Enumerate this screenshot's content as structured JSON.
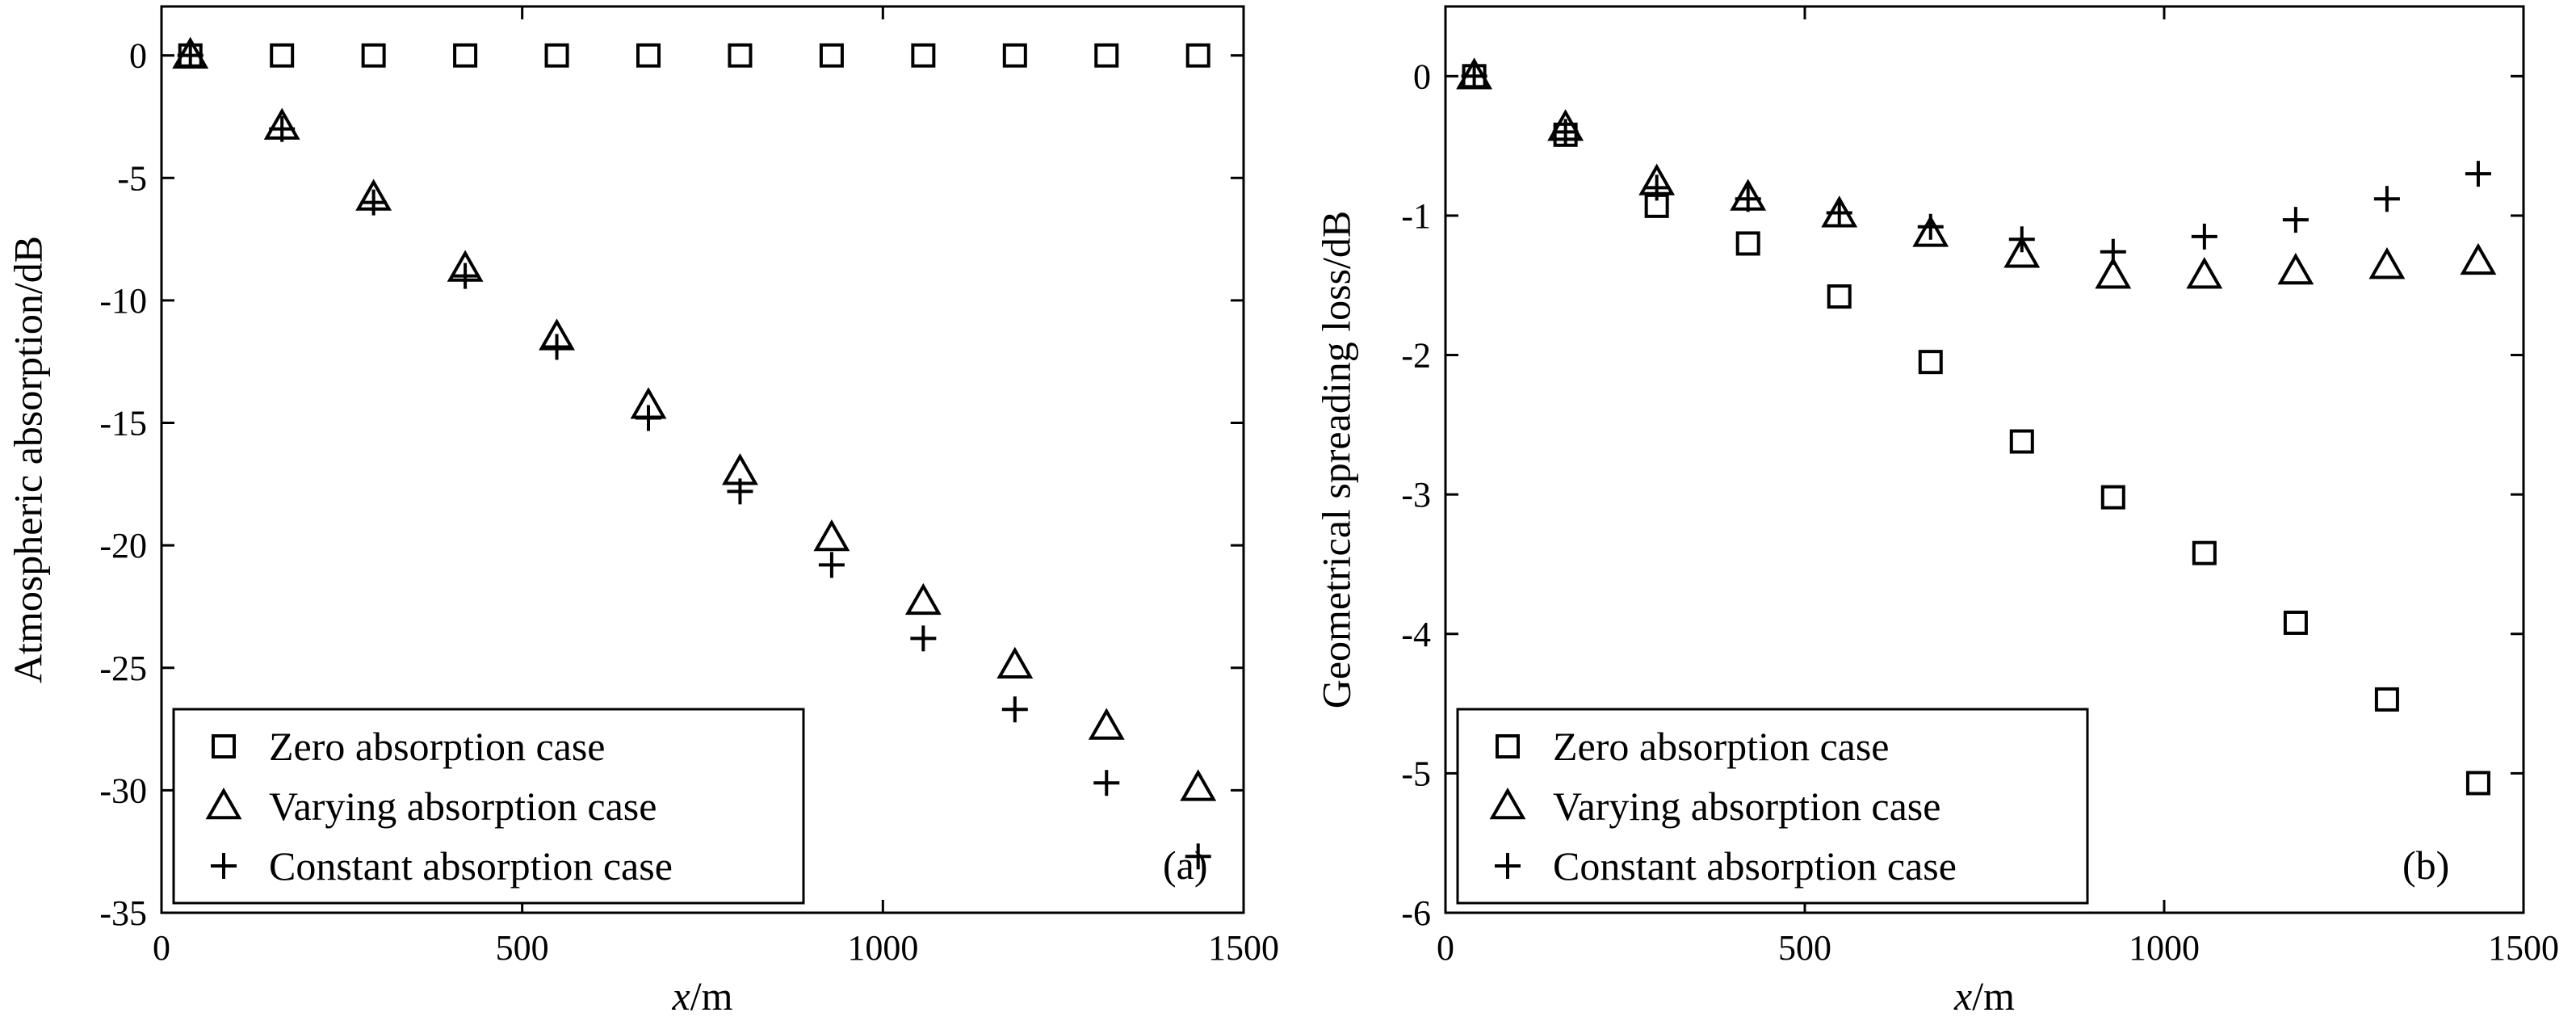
{
  "chart_data": [
    {
      "type": "scatter",
      "panel_label": "(a)",
      "xlabel_italic": "x",
      "xlabel_rest": "/m",
      "ylabel": "Atmospheric absorption/dB",
      "xlim": [
        0,
        1500
      ],
      "ylim": [
        -35,
        2
      ],
      "xticks": [
        0,
        500,
        1000,
        1500
      ],
      "yticks": [
        0,
        -5,
        -10,
        -15,
        -20,
        -25,
        -30,
        -35
      ],
      "grid": false,
      "legend_position": "bottom-left",
      "x": [
        40,
        167,
        294,
        421,
        548,
        675,
        802,
        929,
        1056,
        1183,
        1310,
        1437
      ],
      "series": [
        {
          "name": "Zero absorption case",
          "marker": "square",
          "values": [
            0,
            0,
            0,
            0,
            0,
            0,
            0,
            0,
            0,
            0,
            0,
            0
          ]
        },
        {
          "name": "Varying absorption case",
          "marker": "triangle",
          "values": [
            0,
            -2.9,
            -5.8,
            -8.7,
            -11.5,
            -14.3,
            -17.0,
            -19.7,
            -22.3,
            -24.9,
            -27.4,
            -29.9
          ]
        },
        {
          "name": "Constant absorption case",
          "marker": "plus",
          "values": [
            0,
            -3.0,
            -6.0,
            -9.0,
            -11.9,
            -14.8,
            -17.8,
            -20.8,
            -23.8,
            -26.7,
            -29.7,
            -32.7
          ]
        }
      ]
    },
    {
      "type": "scatter",
      "panel_label": "(b)",
      "xlabel_italic": "x",
      "xlabel_rest": "/m",
      "ylabel": "Geometrical spreading loss/dB",
      "xlim": [
        0,
        1500
      ],
      "ylim": [
        -6,
        0.5
      ],
      "xticks": [
        0,
        500,
        1000,
        1500
      ],
      "yticks": [
        0,
        -1,
        -2,
        -3,
        -4,
        -5,
        -6
      ],
      "grid": false,
      "legend_position": "bottom-left",
      "x": [
        40,
        167,
        294,
        421,
        548,
        675,
        802,
        929,
        1056,
        1183,
        1310,
        1437
      ],
      "series": [
        {
          "name": "Zero absorption case",
          "marker": "square",
          "values": [
            0,
            -0.42,
            -0.93,
            -1.2,
            -1.58,
            -2.05,
            -2.62,
            -3.02,
            -3.42,
            -3.92,
            -4.47,
            -5.07
          ]
        },
        {
          "name": "Varying absorption case",
          "marker": "triangle",
          "values": [
            0,
            -0.37,
            -0.76,
            -0.87,
            -0.99,
            -1.13,
            -1.28,
            -1.43,
            -1.43,
            -1.4,
            -1.36,
            -1.33
          ]
        },
        {
          "name": "Constant absorption case",
          "marker": "plus",
          "values": [
            0,
            -0.4,
            -0.8,
            -0.88,
            -0.98,
            -1.08,
            -1.17,
            -1.26,
            -1.15,
            -1.03,
            -0.88,
            -0.7
          ]
        }
      ]
    }
  ]
}
